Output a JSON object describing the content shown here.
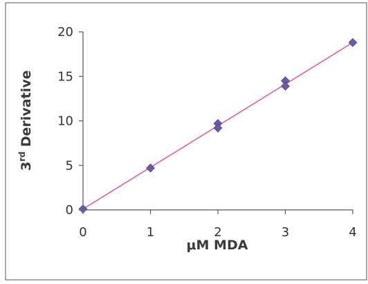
{
  "chart_data": {
    "type": "scatter",
    "title": "",
    "xlabel": "μM MDA",
    "ylabel": {
      "prefix": "3",
      "superscript": "rd",
      "suffix": " Derivative"
    },
    "xlim": [
      0,
      4
    ],
    "ylim": [
      0,
      20
    ],
    "xticks": [
      "0",
      "1",
      "2",
      "3",
      "4"
    ],
    "yticks": [
      "0",
      "5",
      "10",
      "15",
      "20"
    ],
    "grid": false,
    "legend": "none",
    "series": [
      {
        "x": [
          0,
          1,
          2,
          2,
          3,
          3,
          4
        ],
        "y": [
          0.1,
          4.7,
          9.7,
          9.2,
          14.5,
          13.9,
          18.8
        ],
        "marker": "diamond",
        "marker_color": "#6a5aa0"
      }
    ],
    "trendline": {
      "type": "linear",
      "from": [
        0,
        0.1
      ],
      "to": [
        4,
        18.8
      ],
      "color": "#e0609a"
    },
    "colors": {
      "frame": "#555555",
      "axis": "#555555",
      "text": "#333333"
    }
  }
}
